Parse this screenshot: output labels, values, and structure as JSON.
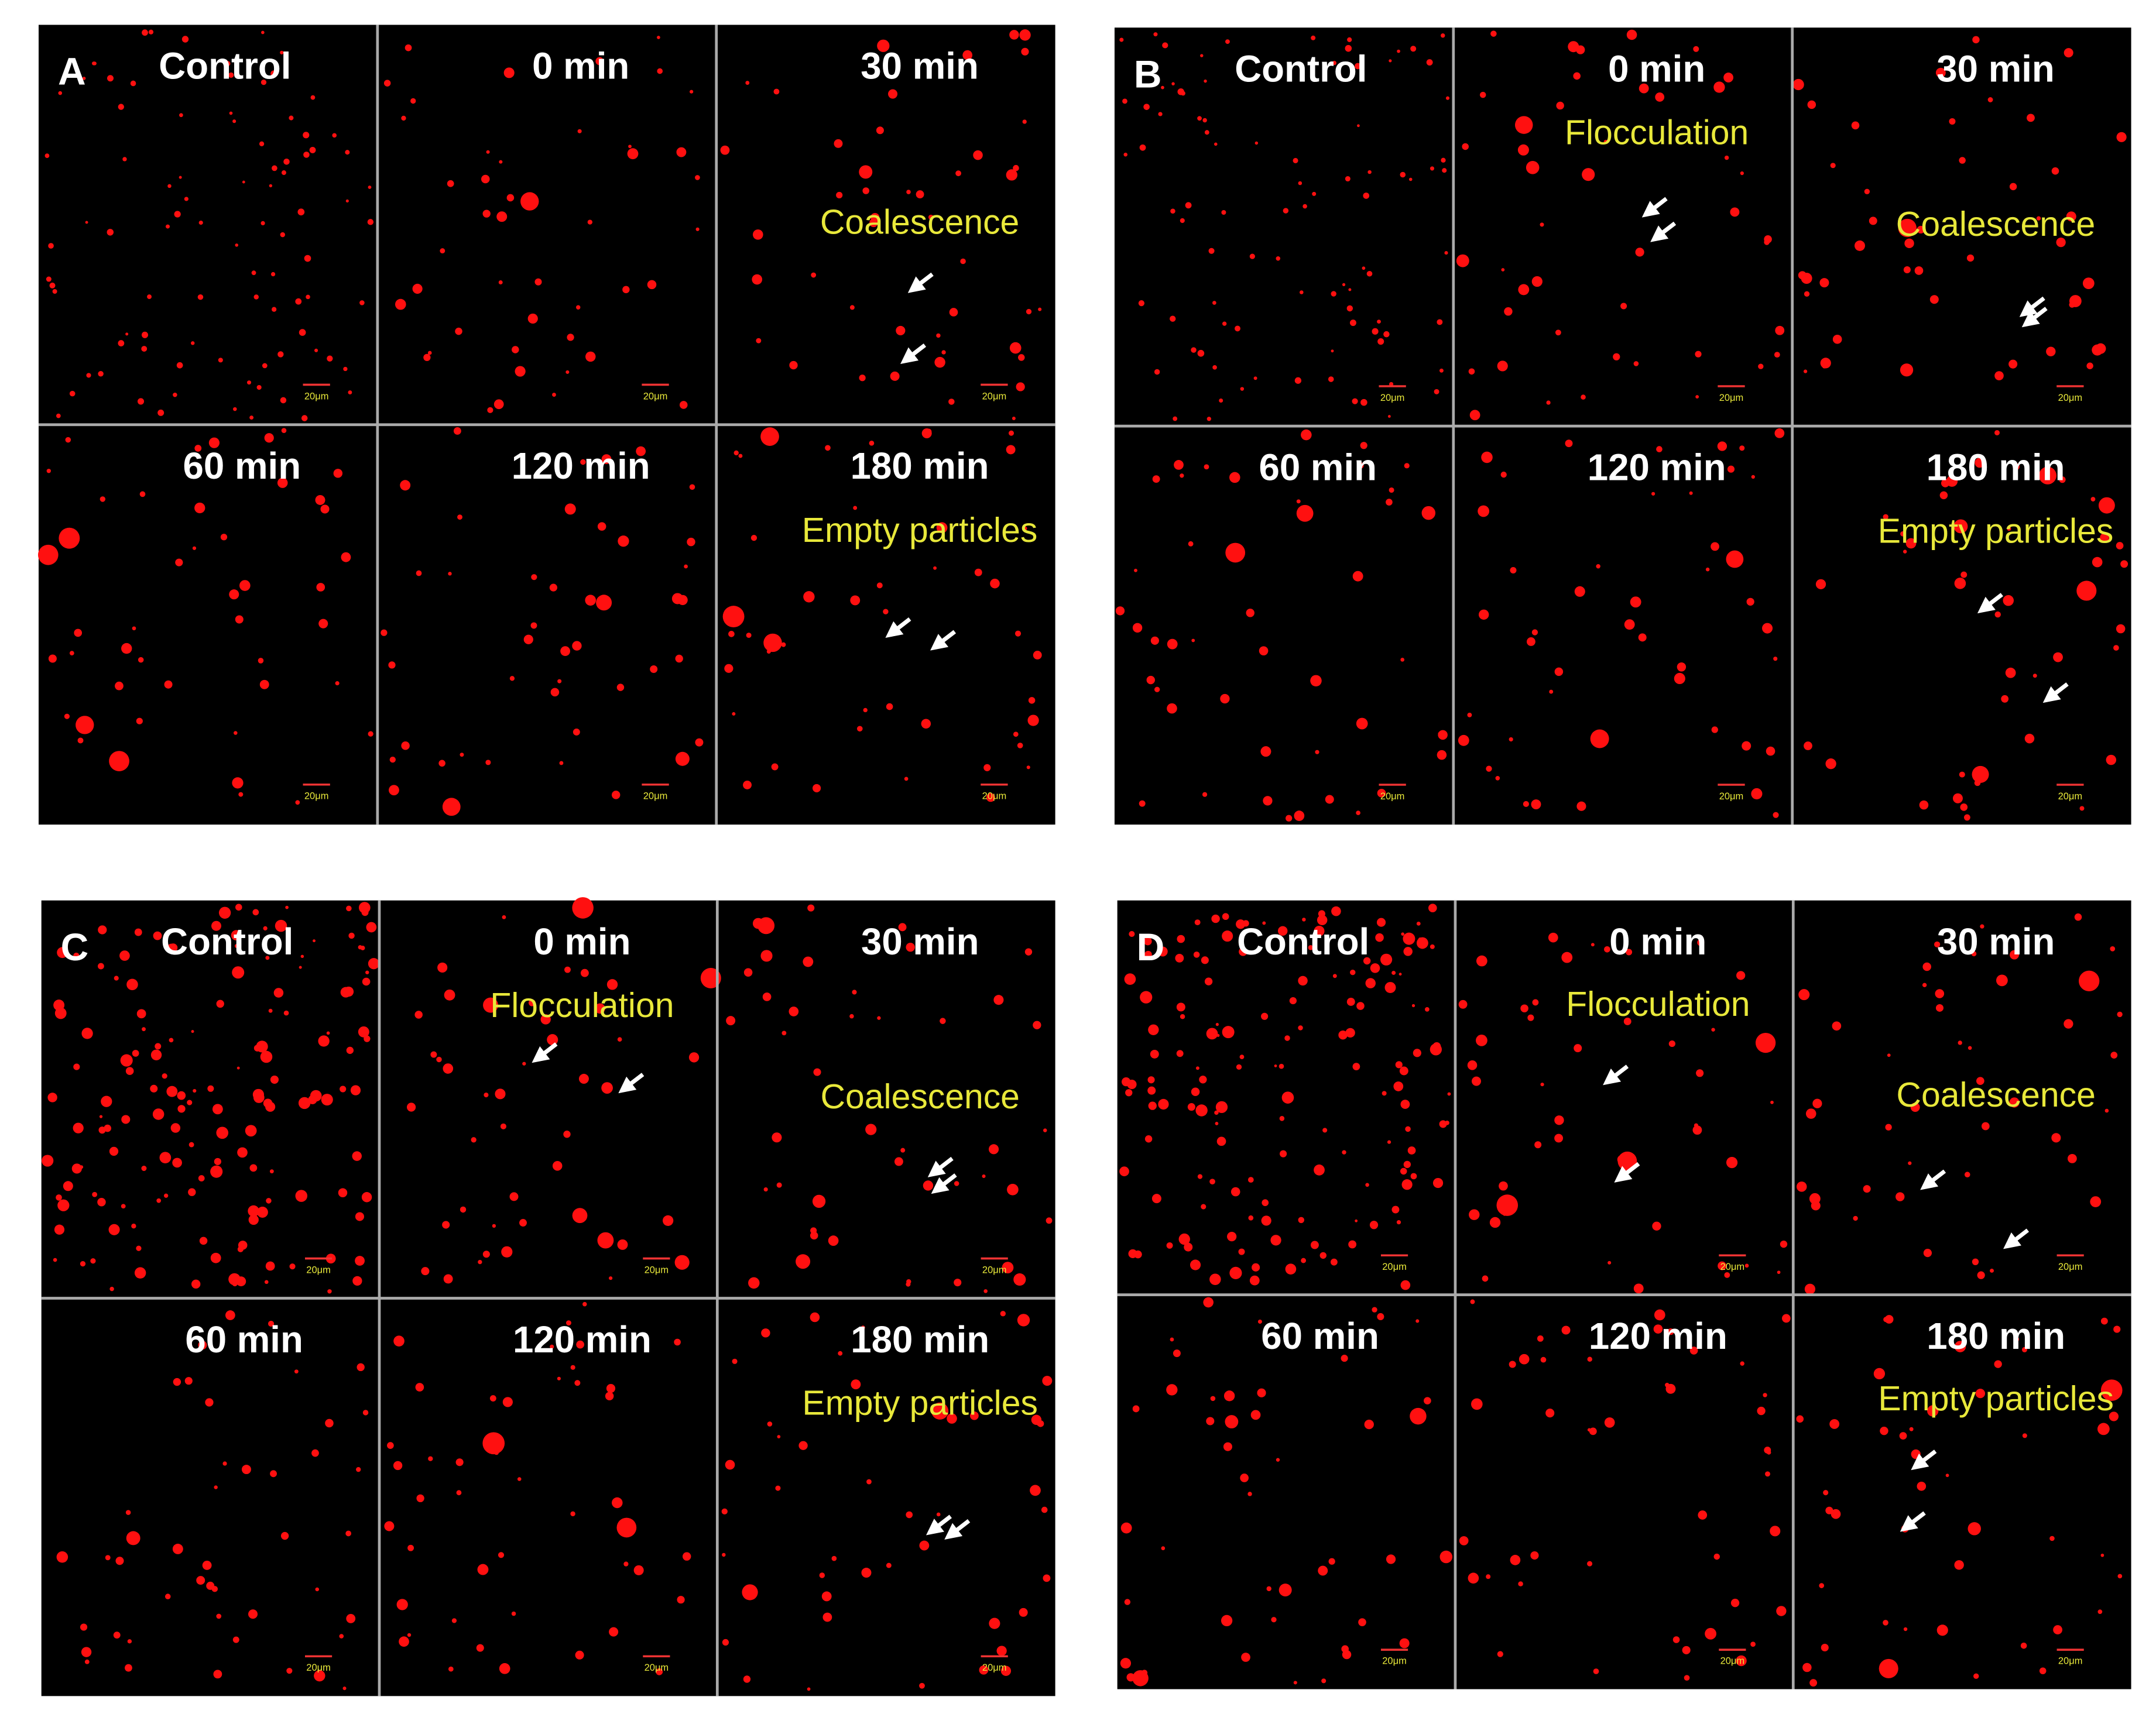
{
  "scale_bar": "20μm",
  "panels": [
    {
      "label": "A",
      "cells": [
        {
          "title": "Control"
        },
        {
          "title": "0 min"
        },
        {
          "title": "30 min",
          "annotation": "Coalescence"
        },
        {
          "title": "60 min"
        },
        {
          "title": "120 min"
        },
        {
          "title": "180 min",
          "annotation": "Empty particles"
        }
      ]
    },
    {
      "label": "B",
      "cells": [
        {
          "title": "Control"
        },
        {
          "title": "0 min",
          "annotation": "Flocculation"
        },
        {
          "title": "30 min",
          "annotation": "Coalescence"
        },
        {
          "title": "60 min"
        },
        {
          "title": "120 min"
        },
        {
          "title": "180 min",
          "annotation": "Empty particles"
        }
      ]
    },
    {
      "label": "C",
      "cells": [
        {
          "title": "Control"
        },
        {
          "title": "0 min",
          "annotation": "Flocculation"
        },
        {
          "title": "30 min",
          "annotation": "Coalescence"
        },
        {
          "title": "60 min"
        },
        {
          "title": "120 min"
        },
        {
          "title": "180 min",
          "annotation": "Empty particles"
        }
      ]
    },
    {
      "label": "D",
      "cells": [
        {
          "title": "Control"
        },
        {
          "title": "0 min",
          "annotation": "Flocculation"
        },
        {
          "title": "30 min",
          "annotation": "Coalescence"
        },
        {
          "title": "60 min"
        },
        {
          "title": "120 min"
        },
        {
          "title": "180 min",
          "annotation": "Empty particles"
        }
      ]
    }
  ]
}
